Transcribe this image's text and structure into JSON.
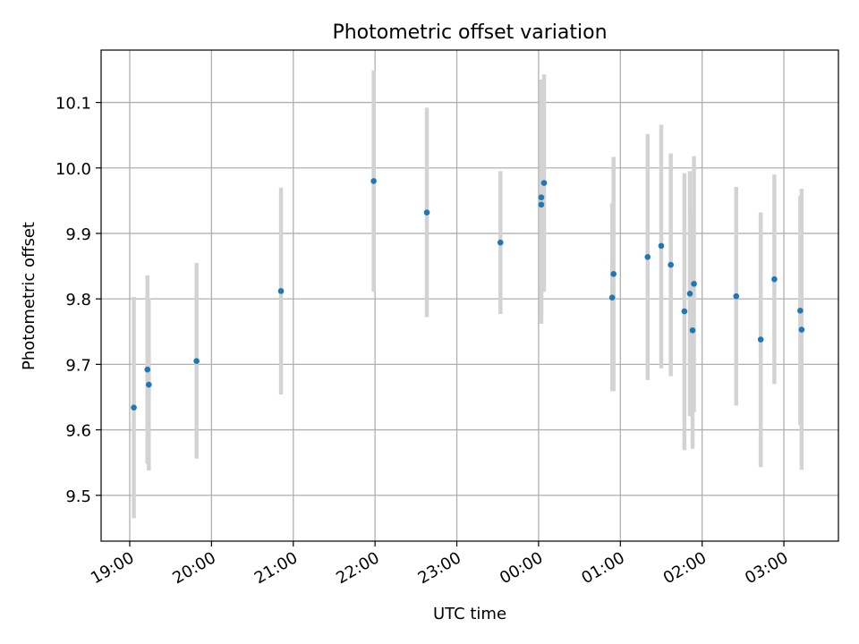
{
  "chart_data": {
    "type": "scatter",
    "title": "Photometric offset variation",
    "xlabel": "UTC time",
    "ylabel": "Photometric offset",
    "x_axis_type": "time",
    "x_start_label": "19:00",
    "xlim_minutes": [
      -21,
      520
    ],
    "ylim": [
      9.43,
      10.18
    ],
    "grid": true,
    "marker_color": "#1f77b4",
    "errorbar_color": "#d3d3d3",
    "x_ticks": [
      {
        "label": "19:00",
        "minutes": 0
      },
      {
        "label": "20:00",
        "minutes": 60
      },
      {
        "label": "21:00",
        "minutes": 120
      },
      {
        "label": "22:00",
        "minutes": 180
      },
      {
        "label": "23:00",
        "minutes": 240
      },
      {
        "label": "00:00",
        "minutes": 300
      },
      {
        "label": "01:00",
        "minutes": 360
      },
      {
        "label": "02:00",
        "minutes": 420
      },
      {
        "label": "03:00",
        "minutes": 480
      }
    ],
    "y_ticks": [
      9.5,
      9.6,
      9.7,
      9.8,
      9.9,
      10.0,
      10.1
    ],
    "points": [
      {
        "time": "19:03",
        "y": 9.634,
        "ylow": 9.465,
        "yhigh": 9.803
      },
      {
        "time": "19:13",
        "y": 9.692,
        "ylow": 9.548,
        "yhigh": 9.836
      },
      {
        "time": "19:14",
        "y": 9.669,
        "ylow": 9.538,
        "yhigh": 9.801
      },
      {
        "time": "19:49",
        "y": 9.705,
        "ylow": 9.556,
        "yhigh": 9.855
      },
      {
        "time": "20:51",
        "y": 9.812,
        "ylow": 9.654,
        "yhigh": 9.97
      },
      {
        "time": "21:59",
        "y": 9.98,
        "ylow": 9.811,
        "yhigh": 10.149
      },
      {
        "time": "22:38",
        "y": 9.932,
        "ylow": 9.772,
        "yhigh": 10.092
      },
      {
        "time": "23:32",
        "y": 9.886,
        "ylow": 9.777,
        "yhigh": 9.995
      },
      {
        "time": "00:02",
        "y": 9.955,
        "ylow": 9.775,
        "yhigh": 10.135
      },
      {
        "time": "00:02",
        "y": 9.944,
        "ylow": 9.762,
        "yhigh": 10.126
      },
      {
        "time": "00:04",
        "y": 9.977,
        "ylow": 9.811,
        "yhigh": 10.143
      },
      {
        "time": "00:54",
        "y": 9.802,
        "ylow": 9.659,
        "yhigh": 9.946
      },
      {
        "time": "00:55",
        "y": 9.838,
        "ylow": 9.659,
        "yhigh": 10.017
      },
      {
        "time": "01:20",
        "y": 9.864,
        "ylow": 9.676,
        "yhigh": 10.052
      },
      {
        "time": "01:30",
        "y": 9.881,
        "ylow": 9.694,
        "yhigh": 10.066
      },
      {
        "time": "01:37",
        "y": 9.852,
        "ylow": 9.682,
        "yhigh": 10.022
      },
      {
        "time": "01:47",
        "y": 9.781,
        "ylow": 9.569,
        "yhigh": 9.992
      },
      {
        "time": "01:51",
        "y": 9.808,
        "ylow": 9.621,
        "yhigh": 9.995
      },
      {
        "time": "01:53",
        "y": 9.752,
        "ylow": 9.571,
        "yhigh": 9.933
      },
      {
        "time": "01:54",
        "y": 9.823,
        "ylow": 9.627,
        "yhigh": 10.018
      },
      {
        "time": "02:25",
        "y": 9.804,
        "ylow": 9.637,
        "yhigh": 9.971
      },
      {
        "time": "02:43",
        "y": 9.738,
        "ylow": 9.543,
        "yhigh": 9.932
      },
      {
        "time": "02:53",
        "y": 9.83,
        "ylow": 9.67,
        "yhigh": 9.99
      },
      {
        "time": "03:12",
        "y": 9.782,
        "ylow": 9.607,
        "yhigh": 9.957
      },
      {
        "time": "03:13",
        "y": 9.753,
        "ylow": 9.539,
        "yhigh": 9.968
      }
    ]
  }
}
